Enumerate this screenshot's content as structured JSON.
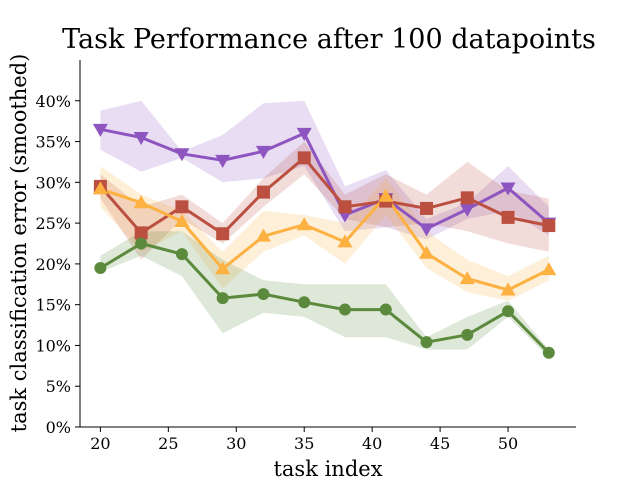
{
  "chart_data": {
    "type": "line",
    "title": "Task Performance after 100 datapoints",
    "xlabel": "task index",
    "ylabel": "task classification error (smoothed)",
    "xlim": [
      18.5,
      55.0
    ],
    "ylim": [
      0,
      45
    ],
    "x_ticks": [
      20,
      25,
      30,
      35,
      40,
      45,
      50
    ],
    "x_tick_labels": [
      "20",
      "25",
      "30",
      "35",
      "40",
      "45",
      "50"
    ],
    "y_ticks": [
      0,
      5,
      10,
      15,
      20,
      25,
      30,
      35,
      40
    ],
    "y_tick_labels": [
      "0%",
      "5%",
      "10%",
      "15%",
      "20%",
      "25%",
      "30%",
      "35%",
      "40%"
    ],
    "grid": false,
    "legend": "none",
    "x": [
      20,
      23,
      26,
      29,
      32,
      35,
      38,
      41,
      44,
      47,
      50,
      53
    ],
    "series": [
      {
        "color": "#8e55c0",
        "marker": "triangle-down",
        "values": [
          36.5,
          35.5,
          33.5,
          32.7,
          33.8,
          36.0,
          26.0,
          28.0,
          24.3,
          26.7,
          29.3,
          25.0
        ],
        "band_upper": [
          38.8,
          40.0,
          33.8,
          35.8,
          39.7,
          40.0,
          29.5,
          31.5,
          25.5,
          27.5,
          32.0,
          27.0
        ],
        "band_lower": [
          34.0,
          31.3,
          33.0,
          30.0,
          30.5,
          32.0,
          24.0,
          24.5,
          23.0,
          25.5,
          26.5,
          23.5
        ]
      },
      {
        "color": "#bb5040",
        "marker": "square",
        "values": [
          29.5,
          23.8,
          27.0,
          23.7,
          28.8,
          33.0,
          27.0,
          27.7,
          26.8,
          28.1,
          25.7,
          24.7
        ],
        "band_upper": [
          31.0,
          27.0,
          28.5,
          25.0,
          30.5,
          35.0,
          28.5,
          31.0,
          28.5,
          32.5,
          29.0,
          28.0
        ],
        "band_lower": [
          28.0,
          20.5,
          25.5,
          22.5,
          27.0,
          31.0,
          25.5,
          24.5,
          25.0,
          24.0,
          22.5,
          21.5
        ]
      },
      {
        "color": "#fcb141",
        "marker": "triangle-up",
        "values": [
          29.2,
          27.5,
          25.2,
          19.4,
          23.4,
          24.8,
          22.7,
          28.3,
          21.3,
          18.2,
          16.8,
          19.3
        ],
        "band_upper": [
          32.0,
          28.5,
          26.5,
          21.5,
          26.5,
          26.0,
          25.0,
          30.5,
          24.0,
          20.5,
          18.5,
          21.0
        ],
        "band_lower": [
          27.0,
          21.5,
          24.0,
          17.0,
          21.5,
          23.5,
          20.0,
          26.0,
          19.5,
          16.5,
          15.5,
          18.0
        ]
      },
      {
        "color": "#5b8a3c",
        "marker": "circle",
        "values": [
          19.5,
          22.5,
          21.2,
          15.8,
          16.3,
          15.3,
          14.4,
          14.4,
          10.4,
          11.3,
          14.2,
          9.1
        ],
        "band_upper": [
          21.0,
          24.0,
          24.0,
          20.5,
          18.0,
          17.5,
          17.5,
          17.5,
          11.0,
          13.5,
          15.5,
          9.5
        ],
        "band_lower": [
          19.0,
          21.0,
          18.5,
          11.5,
          14.0,
          13.5,
          11.0,
          11.0,
          9.5,
          9.5,
          13.5,
          8.5
        ]
      }
    ]
  }
}
